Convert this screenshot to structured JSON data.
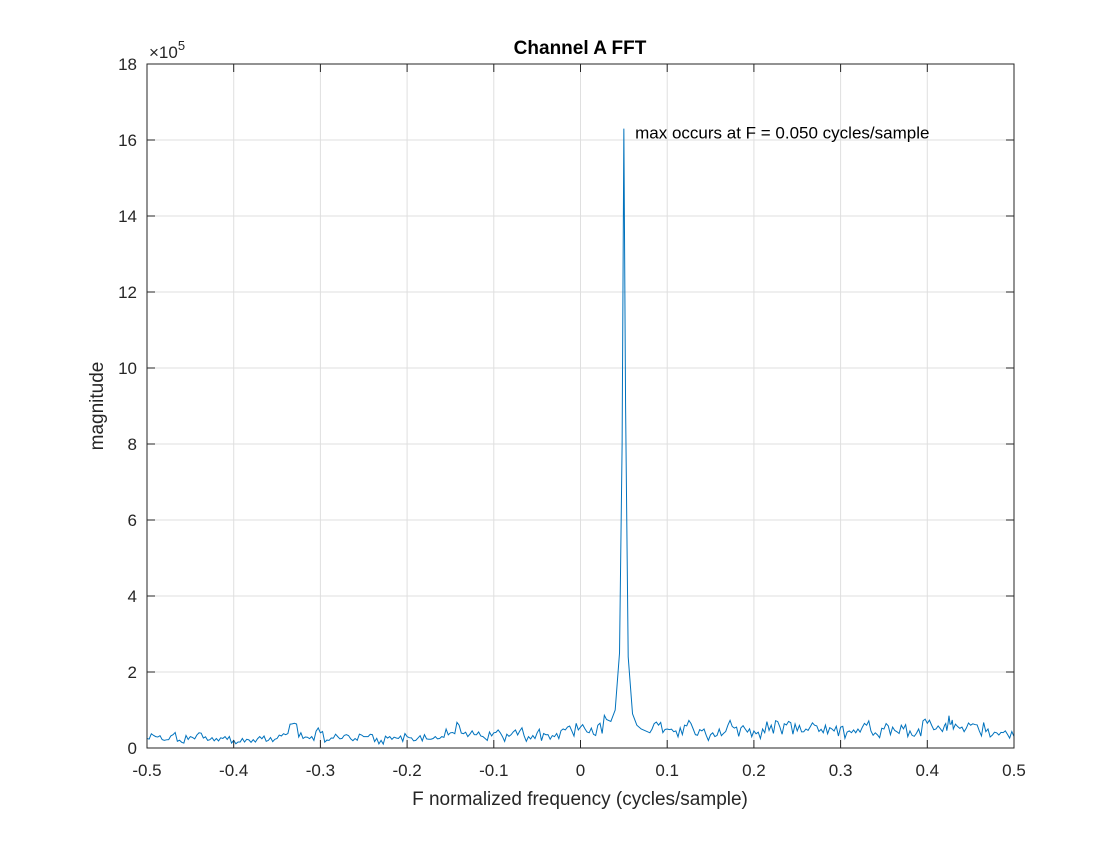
{
  "chart_data": {
    "type": "line",
    "title": "Channel A FFT",
    "xlabel": "F normalized frequency (cycles/sample)",
    "ylabel": "magnitude",
    "y_exponent_label": "×10",
    "y_exponent_power": "5",
    "xlim": [
      -0.5,
      0.5
    ],
    "ylim": [
      0,
      18
    ],
    "x_ticks": [
      "-0.5",
      "-0.4",
      "-0.3",
      "-0.2",
      "-0.1",
      "0",
      "0.1",
      "0.2",
      "0.3",
      "0.4",
      "0.5"
    ],
    "y_ticks": [
      "0",
      "2",
      "4",
      "6",
      "8",
      "10",
      "12",
      "14",
      "16",
      "18"
    ],
    "grid": true,
    "line_color": "#0072BD",
    "annotation": {
      "text": "max occurs at F = 0.050 cycles/sample",
      "x": 0.063,
      "y": 16.2
    },
    "peak": {
      "x": 0.05,
      "y": 16.3
    },
    "noise_floor": {
      "x_start": -0.5,
      "x_end": 0.5,
      "typical": 0.3,
      "max": 0.85
    },
    "series": [
      {
        "x": [
          -0.5,
          -0.49,
          -0.48,
          -0.47,
          -0.46,
          -0.45,
          -0.44,
          -0.43,
          -0.42,
          -0.41,
          -0.4,
          -0.39,
          -0.38,
          -0.37,
          -0.36,
          -0.35,
          -0.34,
          -0.33,
          -0.32,
          -0.31,
          -0.3,
          -0.29,
          -0.28,
          -0.27,
          -0.26,
          -0.25,
          -0.24,
          -0.23,
          -0.22,
          -0.21,
          -0.2,
          -0.19,
          -0.18,
          -0.17,
          -0.16,
          -0.15,
          -0.14,
          -0.13,
          -0.12,
          -0.11,
          -0.1,
          -0.09,
          -0.08,
          -0.07,
          -0.06,
          -0.05,
          -0.04,
          -0.03,
          -0.02,
          -0.01,
          0.0,
          0.01,
          0.02,
          0.03,
          0.035,
          0.04,
          0.045,
          0.048,
          0.05,
          0.052,
          0.055,
          0.06,
          0.065,
          0.07,
          0.08,
          0.09,
          0.1,
          0.11,
          0.12,
          0.13,
          0.14,
          0.15,
          0.16,
          0.17,
          0.18,
          0.19,
          0.2,
          0.21,
          0.22,
          0.23,
          0.24,
          0.25,
          0.26,
          0.27,
          0.28,
          0.29,
          0.3,
          0.31,
          0.32,
          0.33,
          0.34,
          0.35,
          0.36,
          0.37,
          0.38,
          0.39,
          0.4,
          0.41,
          0.42,
          0.425,
          0.43,
          0.44,
          0.45,
          0.46,
          0.47,
          0.48,
          0.49,
          0.5
        ],
        "y": [
          0.25,
          0.3,
          0.2,
          0.35,
          0.15,
          0.3,
          0.4,
          0.2,
          0.25,
          0.3,
          0.2,
          0.25,
          0.15,
          0.3,
          0.2,
          0.25,
          0.35,
          0.65,
          0.25,
          0.3,
          0.4,
          0.2,
          0.3,
          0.35,
          0.25,
          0.3,
          0.35,
          0.2,
          0.3,
          0.25,
          0.3,
          0.2,
          0.35,
          0.25,
          0.3,
          0.4,
          0.6,
          0.3,
          0.35,
          0.25,
          0.4,
          0.3,
          0.35,
          0.45,
          0.3,
          0.4,
          0.35,
          0.3,
          0.5,
          0.45,
          0.55,
          0.4,
          0.6,
          0.75,
          0.7,
          1.0,
          2.5,
          8.0,
          16.3,
          9.0,
          2.4,
          0.9,
          0.6,
          0.5,
          0.4,
          0.6,
          0.5,
          0.45,
          0.6,
          0.5,
          0.45,
          0.35,
          0.5,
          0.6,
          0.55,
          0.5,
          0.45,
          0.5,
          0.6,
          0.55,
          0.7,
          0.45,
          0.5,
          0.6,
          0.4,
          0.5,
          0.55,
          0.45,
          0.5,
          0.6,
          0.4,
          0.5,
          0.55,
          0.6,
          0.45,
          0.5,
          0.65,
          0.5,
          0.6,
          0.85,
          0.5,
          0.55,
          0.6,
          0.45,
          0.5,
          0.4,
          0.45,
          0.3
        ]
      }
    ]
  }
}
